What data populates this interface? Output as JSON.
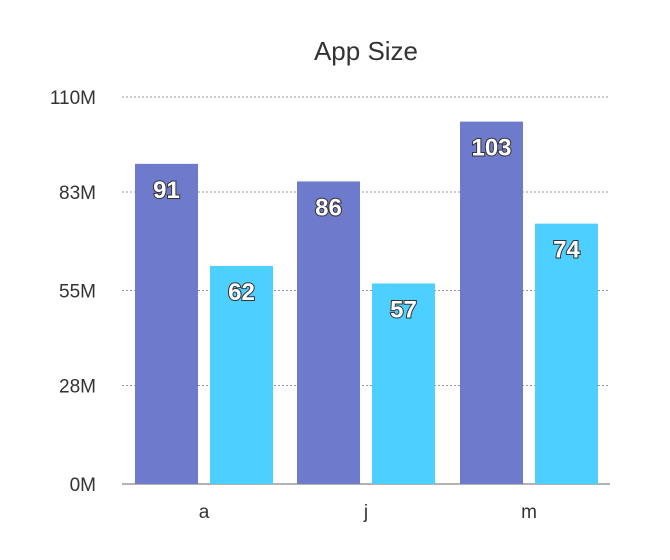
{
  "chart_data": {
    "type": "bar",
    "title": "App Size",
    "categories": [
      "a",
      "j",
      "m"
    ],
    "series": [
      {
        "values": [
          91,
          86,
          103
        ],
        "color": "#6e7acb"
      },
      {
        "values": [
          62,
          57,
          74
        ],
        "color": "#4dcfff"
      }
    ],
    "yticks": [
      "0M",
      "28M",
      "55M",
      "83M",
      "110M"
    ],
    "ylim": [
      0,
      110
    ],
    "grid": true
  }
}
